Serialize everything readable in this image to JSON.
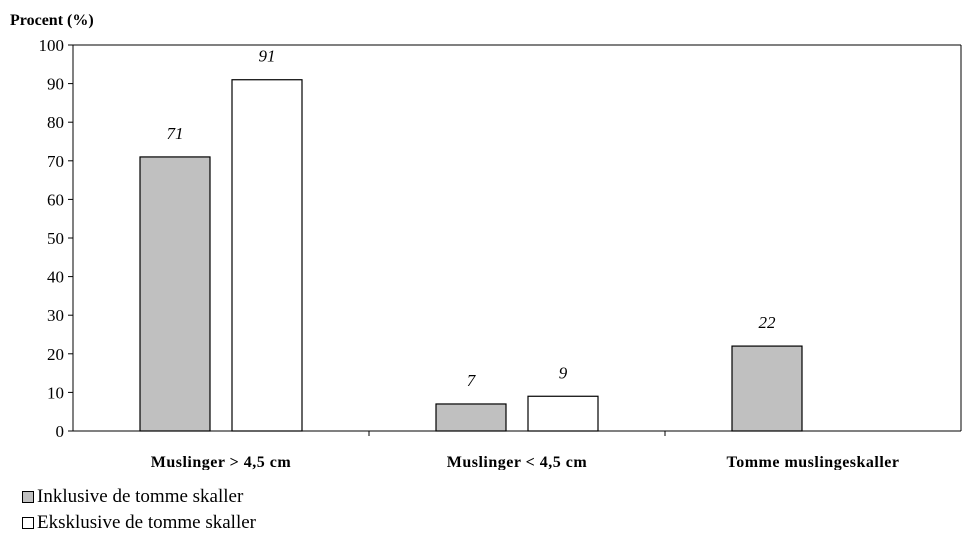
{
  "chart_data": {
    "type": "bar",
    "ylabel": "Procent (%)",
    "ylim": [
      0,
      100
    ],
    "yticks": [
      0,
      10,
      20,
      30,
      40,
      50,
      60,
      70,
      80,
      90,
      100
    ],
    "categories": [
      "Muslinger > 4,5 cm",
      "Muslinger < 4,5 cm",
      "Tomme muslingeskaller"
    ],
    "series": [
      {
        "name": "Inklusive de tomme skaller",
        "color": "#c0c0c0",
        "values": [
          71,
          7,
          22
        ]
      },
      {
        "name": "Eksklusive de tomme skaller",
        "color": "#ffffff",
        "values": [
          91,
          9,
          null
        ]
      }
    ],
    "data_labels": true,
    "grid": false,
    "legend_position": "bottom-left"
  }
}
